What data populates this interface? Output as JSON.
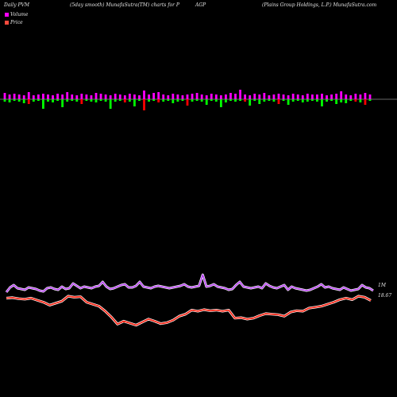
{
  "header": {
    "left": "Daily PVM",
    "middle": "(5day smooth) MunafaSutra(TM) charts for P",
    "ticker": "AGP",
    "company": "(Plains Group Holdings, L.P.) MunafaSutra.com"
  },
  "legend": {
    "volume": "Volume",
    "price": "Price"
  },
  "colors": {
    "background": "#000000",
    "up_bar": "#ff00ff",
    "down_bar": "#00ff00",
    "down_bar_alt": "#ff0000",
    "pvm_line": "#b43cf0",
    "price_line": "#ff2a1a"
  },
  "chart_data": {
    "type": "line",
    "pvm_end_label": "1M",
    "price_end_label": "18.67",
    "volume_bars": {
      "up": [
        8,
        6,
        7,
        6,
        5,
        9,
        5,
        6,
        7,
        6,
        5,
        7,
        6,
        9,
        6,
        5,
        7,
        6,
        5,
        8,
        7,
        6,
        5,
        7,
        6,
        5,
        7,
        6,
        5,
        11,
        6,
        8,
        9,
        6,
        5,
        7,
        6,
        5,
        6,
        7,
        8,
        6,
        5,
        7,
        6,
        5,
        6,
        8,
        7,
        12,
        6,
        5,
        7,
        6,
        8,
        5,
        6,
        7,
        6,
        5,
        7,
        6,
        5,
        7,
        6,
        6,
        7,
        5,
        6,
        7,
        10,
        6,
        5,
        7,
        6,
        8,
        6
      ],
      "down": [
        3,
        4,
        2,
        3,
        5,
        6,
        3,
        2,
        12,
        3,
        4,
        2,
        10,
        3,
        2,
        3,
        6,
        2,
        3,
        4,
        2,
        3,
        12,
        3,
        2,
        4,
        3,
        9,
        2,
        14,
        3,
        2,
        4,
        3,
        2,
        5,
        3,
        2,
        8,
        3,
        2,
        3,
        7,
        2,
        3,
        10,
        4,
        2,
        3,
        2,
        3,
        8,
        2,
        6,
        3,
        2,
        3,
        6,
        2,
        7,
        3,
        2,
        4,
        3,
        2,
        3,
        9,
        3,
        2,
        6,
        4,
        5,
        2,
        3,
        4,
        7,
        2
      ],
      "down_is_red": [
        false,
        false,
        false,
        false,
        false,
        true,
        false,
        false,
        false,
        false,
        false,
        false,
        false,
        false,
        false,
        false,
        true,
        false,
        false,
        false,
        false,
        false,
        false,
        false,
        false,
        true,
        false,
        false,
        false,
        true,
        false,
        false,
        true,
        false,
        false,
        false,
        false,
        false,
        true,
        false,
        false,
        false,
        false,
        false,
        false,
        false,
        false,
        false,
        false,
        false,
        true,
        false,
        false,
        false,
        false,
        false,
        false,
        true,
        false,
        false,
        false,
        false,
        false,
        false,
        false,
        false,
        false,
        false,
        false,
        false,
        false,
        false,
        false,
        true,
        false,
        true,
        false
      ]
    },
    "pvm_series": [
      58,
      52,
      49,
      53,
      54,
      55,
      52,
      53,
      54,
      56,
      57,
      53,
      52,
      54,
      55,
      51,
      54,
      53,
      47,
      50,
      53,
      51,
      52,
      53,
      51,
      50,
      45,
      51,
      54,
      53,
      51,
      49,
      48,
      52,
      52,
      50,
      45,
      51,
      52,
      53,
      51,
      50,
      51,
      52,
      53,
      52,
      51,
      50,
      48,
      51,
      52,
      51,
      50,
      36,
      51,
      50,
      48,
      51,
      52,
      53,
      55,
      54,
      49,
      45,
      51,
      52,
      53,
      52,
      51,
      53,
      47,
      50,
      52,
      53,
      51,
      49,
      55,
      51,
      53,
      54,
      55,
      56,
      55,
      53,
      51,
      48,
      52,
      51,
      53,
      54,
      55,
      52,
      54,
      56,
      55,
      54,
      49,
      52,
      53,
      56
    ],
    "price_series": [
      18.9,
      18.95,
      18.85,
      18.8,
      18.9,
      18.7,
      18.5,
      18.2,
      18.4,
      18.6,
      19.1,
      19.0,
      19.05,
      18.5,
      18.3,
      18.1,
      17.6,
      17.0,
      16.3,
      16.6,
      16.4,
      16.2,
      16.5,
      16.8,
      16.6,
      16.35,
      16.45,
      16.7,
      17.1,
      17.3,
      17.7,
      17.6,
      17.75,
      17.65,
      17.7,
      17.6,
      17.7,
      16.9,
      16.95,
      16.8,
      16.9,
      17.15,
      17.35,
      17.3,
      17.25,
      17.1,
      17.5,
      17.65,
      17.6,
      17.9,
      18.0,
      18.1,
      18.3,
      18.5,
      18.75,
      18.9,
      18.75,
      19.1,
      19.0,
      18.67
    ]
  }
}
